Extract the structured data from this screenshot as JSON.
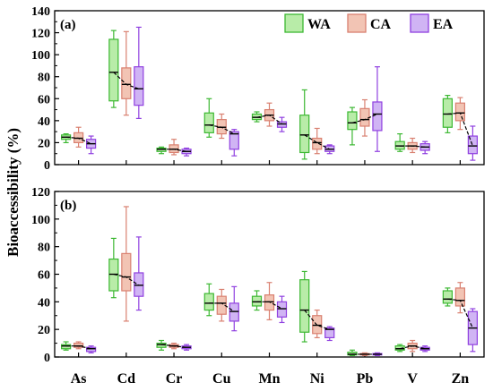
{
  "colors": {
    "WA": {
      "fill": "#b8eca8",
      "stroke": "#3cb832"
    },
    "CA": {
      "fill": "#f2c4b4",
      "stroke": "#d98070"
    },
    "EA": {
      "fill": "#d0b4f4",
      "stroke": "#9040e0"
    },
    "axis": "#000000",
    "median_line": "#000000"
  },
  "ylabel": "Bioaccessibility (%)",
  "legend": [
    {
      "key": "WA",
      "label": "WA"
    },
    {
      "key": "CA",
      "label": "CA"
    },
    {
      "key": "EA",
      "label": "EA"
    }
  ],
  "chart_data": [
    {
      "type": "box",
      "panel_label": "(a)",
      "ylabel": "Bioaccessibility (%)",
      "ylim": [
        0,
        140
      ],
      "yticks": [
        "0",
        "20",
        "40",
        "60",
        "80",
        "100",
        "120",
        "140"
      ],
      "categories": [
        "As",
        "Cd",
        "Cr",
        "Cu",
        "Mn",
        "Ni",
        "Pb",
        "V",
        "Zn"
      ],
      "legend_position": "top-right",
      "series": [
        {
          "name": "WA",
          "boxes": [
            {
              "min": 20,
              "q1": 23,
              "median": 25,
              "q3": 27,
              "max": 28
            },
            {
              "min": 52,
              "q1": 58,
              "median": 84,
              "q3": 114,
              "max": 122
            },
            {
              "min": 10,
              "q1": 12,
              "median": 14,
              "q3": 15,
              "max": 16
            },
            {
              "min": 25,
              "q1": 29,
              "median": 36,
              "q3": 47,
              "max": 60
            },
            {
              "min": 39,
              "q1": 41,
              "median": 43,
              "q3": 46,
              "max": 48
            },
            {
              "min": 5,
              "q1": 11,
              "median": 27,
              "q3": 45,
              "max": 68
            },
            {
              "min": 18,
              "q1": 32,
              "median": 38,
              "q3": 48,
              "max": 52
            },
            {
              "min": 12,
              "q1": 14,
              "median": 17,
              "q3": 21,
              "max": 28
            },
            {
              "min": 29,
              "q1": 34,
              "median": 46,
              "q3": 60,
              "max": 63
            }
          ]
        },
        {
          "name": "CA",
          "boxes": [
            {
              "min": 16,
              "q1": 20,
              "median": 24,
              "q3": 29,
              "max": 34
            },
            {
              "min": 45,
              "q1": 60,
              "median": 73,
              "q3": 88,
              "max": 121
            },
            {
              "min": 9,
              "q1": 11,
              "median": 14,
              "q3": 18,
              "max": 23
            },
            {
              "min": 24,
              "q1": 28,
              "median": 34,
              "q3": 41,
              "max": 46
            },
            {
              "min": 35,
              "q1": 40,
              "median": 45,
              "q3": 50,
              "max": 56
            },
            {
              "min": 10,
              "q1": 14,
              "median": 20,
              "q3": 24,
              "max": 33
            },
            {
              "min": 26,
              "q1": 35,
              "median": 41,
              "q3": 51,
              "max": 59
            },
            {
              "min": 11,
              "q1": 14,
              "median": 17,
              "q3": 20,
              "max": 24
            },
            {
              "min": 32,
              "q1": 40,
              "median": 47,
              "q3": 56,
              "max": 61
            }
          ]
        },
        {
          "name": "EA",
          "boxes": [
            {
              "min": 10,
              "q1": 15,
              "median": 19,
              "q3": 23,
              "max": 26
            },
            {
              "min": 42,
              "q1": 54,
              "median": 69,
              "q3": 89,
              "max": 125
            },
            {
              "min": 8,
              "q1": 10,
              "median": 12,
              "q3": 14,
              "max": 15
            },
            {
              "min": 8,
              "q1": 14,
              "median": 28,
              "q3": 30,
              "max": 32
            },
            {
              "min": 30,
              "q1": 34,
              "median": 37,
              "q3": 39,
              "max": 43
            },
            {
              "min": 10,
              "q1": 12,
              "median": 14,
              "q3": 17,
              "max": 18
            },
            {
              "min": 12,
              "q1": 31,
              "median": 46,
              "q3": 57,
              "max": 89
            },
            {
              "min": 10,
              "q1": 13,
              "median": 16,
              "q3": 19,
              "max": 21
            },
            {
              "min": 4,
              "q1": 10,
              "median": 17,
              "q3": 26,
              "max": 35
            }
          ]
        }
      ]
    },
    {
      "type": "box",
      "panel_label": "(b)",
      "ylabel": "Bioaccessibility (%)",
      "ylim": [
        0,
        120
      ],
      "yticks": [
        "0",
        "20",
        "40",
        "60",
        "80",
        "100",
        "120"
      ],
      "categories": [
        "As",
        "Cd",
        "Cr",
        "Cu",
        "Mn",
        "Ni",
        "Pb",
        "V",
        "Zn"
      ],
      "series": [
        {
          "name": "WA",
          "boxes": [
            {
              "min": 5,
              "q1": 6,
              "median": 8,
              "q3": 9,
              "max": 11
            },
            {
              "min": 43,
              "q1": 48,
              "median": 60,
              "q3": 71,
              "max": 86
            },
            {
              "min": 5,
              "q1": 7,
              "median": 9,
              "q3": 10,
              "max": 12
            },
            {
              "min": 30,
              "q1": 34,
              "median": 39,
              "q3": 46,
              "max": 53
            },
            {
              "min": 34,
              "q1": 37,
              "median": 40,
              "q3": 44,
              "max": 48
            },
            {
              "min": 11,
              "q1": 18,
              "median": 34,
              "q3": 56,
              "max": 62
            },
            {
              "min": 1,
              "q1": 1.5,
              "median": 2,
              "q3": 3.5,
              "max": 5
            },
            {
              "min": 4,
              "q1": 5,
              "median": 6,
              "q3": 8,
              "max": 9
            },
            {
              "min": 37,
              "q1": 39,
              "median": 42,
              "q3": 48,
              "max": 50
            }
          ]
        },
        {
          "name": "CA",
          "boxes": [
            {
              "min": 6,
              "q1": 7,
              "median": 8,
              "q3": 10,
              "max": 11
            },
            {
              "min": 26,
              "q1": 48,
              "median": 58,
              "q3": 75,
              "max": 109
            },
            {
              "min": 6,
              "q1": 7,
              "median": 8,
              "q3": 9,
              "max": 10
            },
            {
              "min": 26,
              "q1": 31,
              "median": 39,
              "q3": 44,
              "max": 49
            },
            {
              "min": 27,
              "q1": 34,
              "median": 40,
              "q3": 45,
              "max": 54
            },
            {
              "min": 14,
              "q1": 17,
              "median": 23,
              "q3": 30,
              "max": 34
            },
            {
              "min": 1,
              "q1": 1.5,
              "median": 2,
              "q3": 2.5,
              "max": 3
            },
            {
              "min": 4,
              "q1": 6,
              "median": 8,
              "q3": 10,
              "max": 12
            },
            {
              "min": 32,
              "q1": 37,
              "median": 41,
              "q3": 50,
              "max": 54
            }
          ]
        },
        {
          "name": "EA",
          "boxes": [
            {
              "min": 3,
              "q1": 4,
              "median": 6,
              "q3": 7,
              "max": 8
            },
            {
              "min": 34,
              "q1": 44,
              "median": 52,
              "q3": 61,
              "max": 87
            },
            {
              "min": 5,
              "q1": 6,
              "median": 7,
              "q3": 8,
              "max": 9
            },
            {
              "min": 19,
              "q1": 26,
              "median": 33,
              "q3": 39,
              "max": 51
            },
            {
              "min": 25,
              "q1": 29,
              "median": 35,
              "q3": 40,
              "max": 44
            },
            {
              "min": 12,
              "q1": 14,
              "median": 20,
              "q3": 21,
              "max": 22
            },
            {
              "min": 1,
              "q1": 1.5,
              "median": 2,
              "q3": 2.5,
              "max": 3
            },
            {
              "min": 4,
              "q1": 5,
              "median": 6,
              "q3": 7,
              "max": 8
            },
            {
              "min": 4,
              "q1": 9,
              "median": 21,
              "q3": 33,
              "max": 35
            }
          ]
        }
      ]
    }
  ]
}
